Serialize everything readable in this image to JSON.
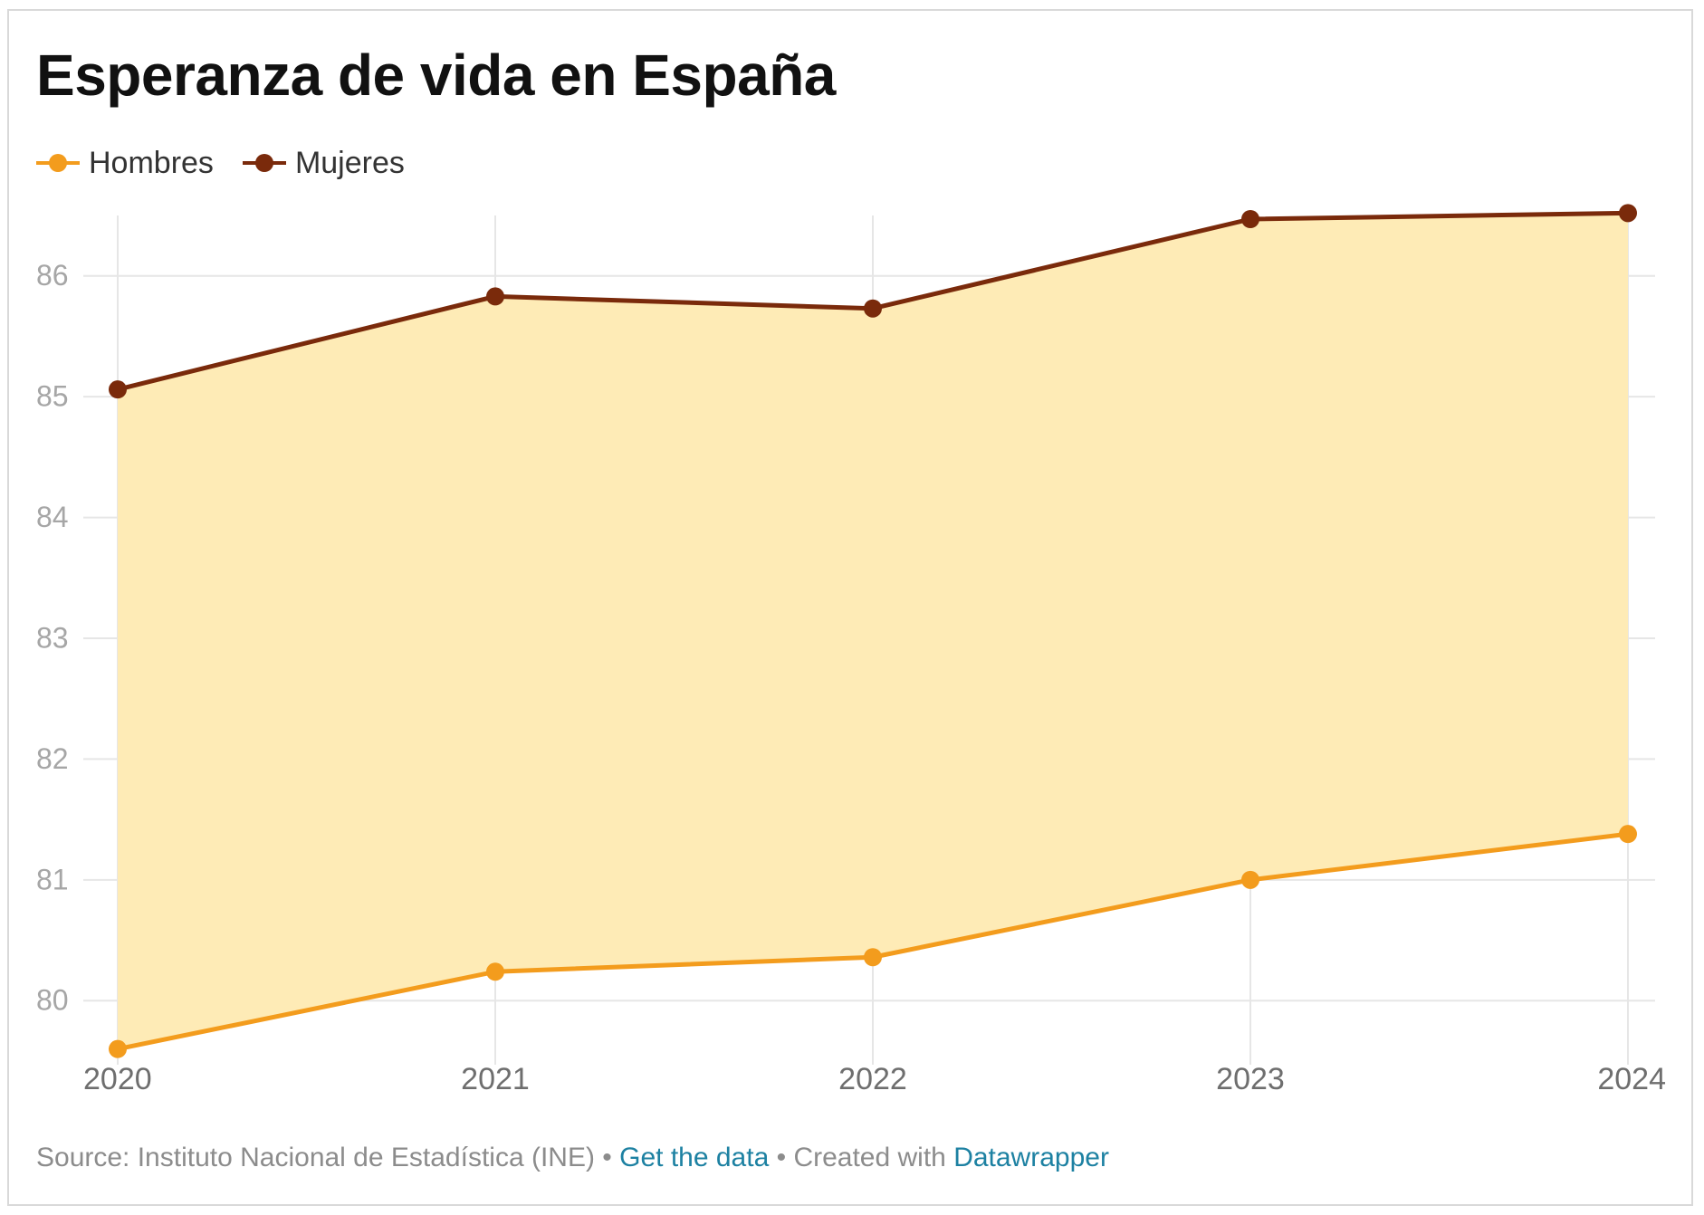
{
  "chart_data": {
    "type": "area",
    "title": "Esperanza de vida en España",
    "categories": [
      "2020",
      "2021",
      "2022",
      "2023",
      "2024"
    ],
    "series": [
      {
        "name": "Hombres",
        "values": [
          79.6,
          80.24,
          80.36,
          81.0,
          81.38
        ],
        "color": "#f39c1d"
      },
      {
        "name": "Mujeres",
        "values": [
          85.06,
          85.83,
          85.73,
          86.47,
          86.52
        ],
        "color": "#7a2a0b"
      }
    ],
    "fill_between_color": "#feebb6",
    "y_ticks": [
      "80",
      "81",
      "82",
      "83",
      "84",
      "85",
      "86"
    ],
    "ylim": [
      79.5,
      86.5
    ],
    "grid": true,
    "legend_position": "top-left"
  },
  "footer": {
    "source": "Source: Instituto Nacional de Estadística (INE)",
    "sep1": " • ",
    "get_data": "Get the data",
    "sep2": " • Created with ",
    "datawrapper": "Datawrapper"
  }
}
